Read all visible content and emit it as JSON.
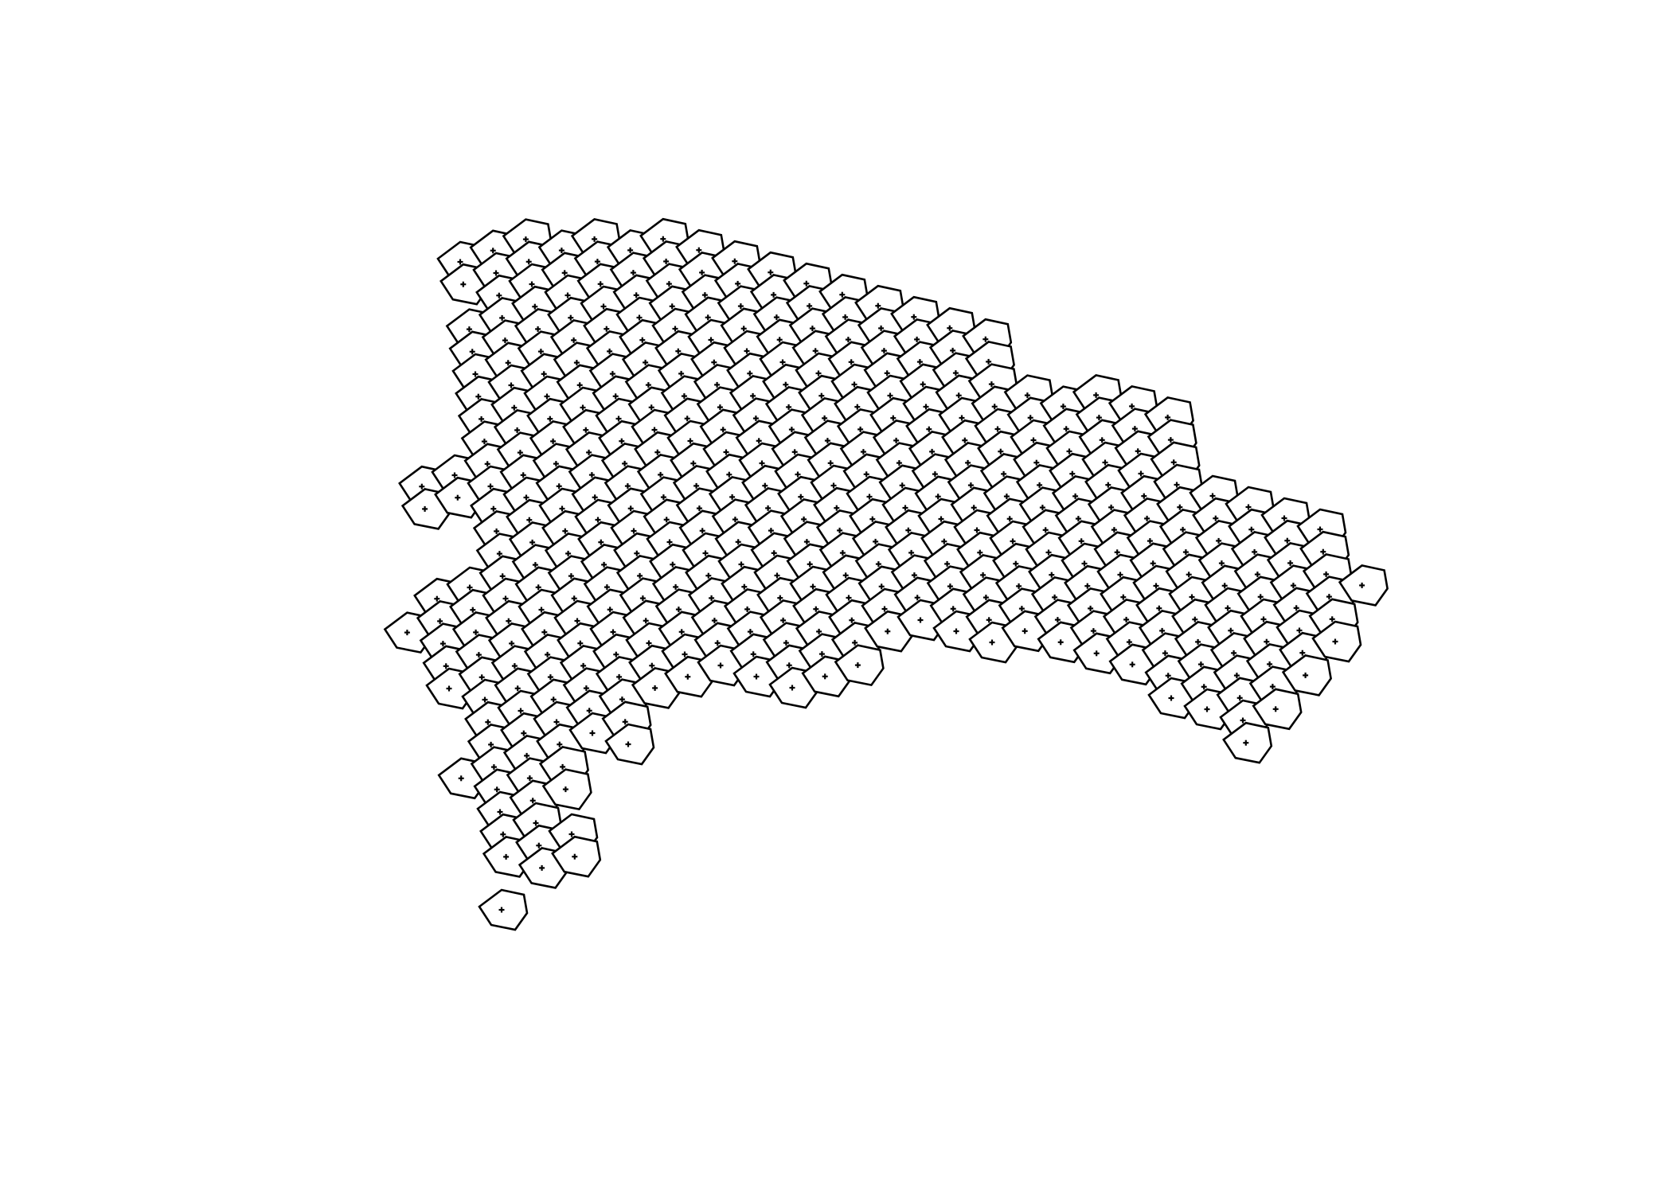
{
  "map": {
    "type": "hexagon-grid",
    "hex_fill": "#ffffff",
    "hex_stroke": "#000000",
    "centroid_marker": "plus-icon",
    "background": "#ffffff",
    "cell_count": 386
  }
}
